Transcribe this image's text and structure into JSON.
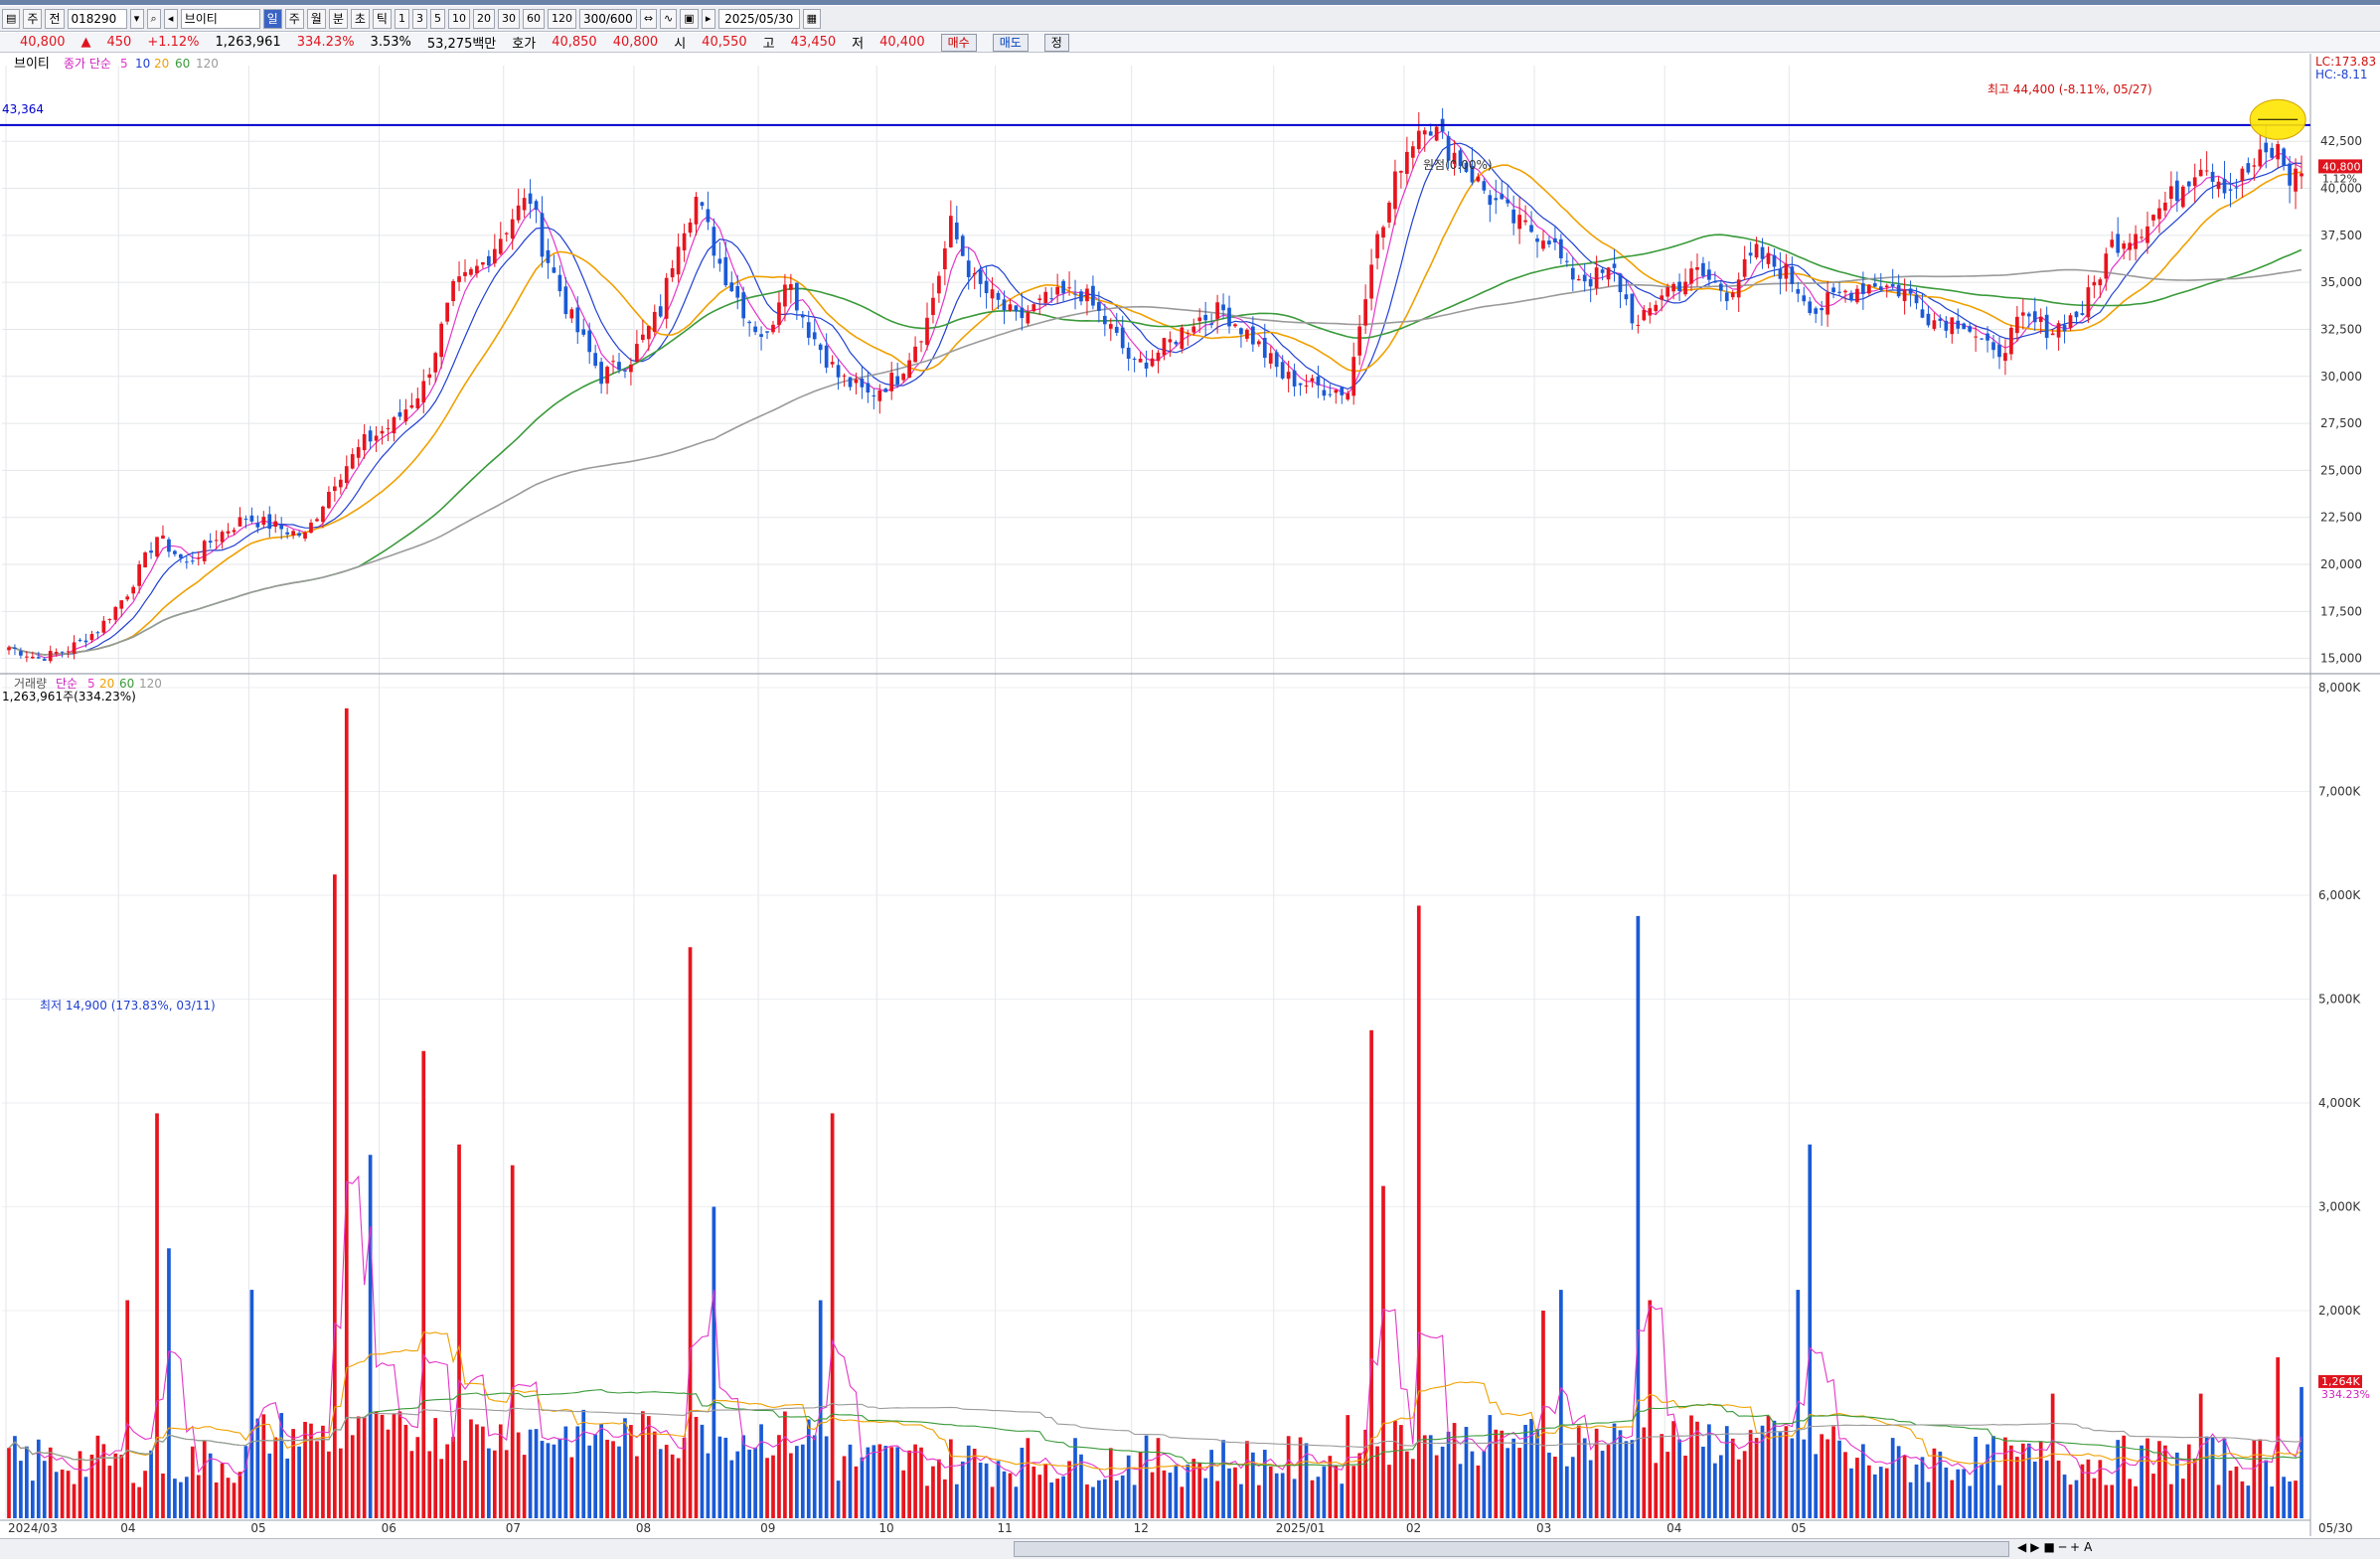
{
  "toolbar": {
    "period_day": "일",
    "period_week": "주",
    "period_month": "월",
    "period_min": "분",
    "period_sec": "초",
    "period_tick": "틱",
    "mode_label": "주",
    "sub_label": "전",
    "code": "018290",
    "name": "브이티",
    "nums": [
      "1",
      "3",
      "5",
      "10",
      "20",
      "30",
      "60",
      "120"
    ],
    "count": "300/600",
    "date": "2025/05/30"
  },
  "quote": {
    "price": "40,800",
    "arrow": "▲",
    "change": "450",
    "change_pct": "+1.12%",
    "volume": "1,263,961",
    "vol_ratio": "334.23%",
    "turnover": "3.53%",
    "amount": "53,275백만",
    "ask_label": "호가",
    "ask1": "40,850",
    "ask2": "40,800",
    "open_label": "시",
    "open": "40,550",
    "high_label": "고",
    "high": "43,450",
    "low_label": "저",
    "low": "40,400",
    "buy": "매수",
    "sell": "매도",
    "other": "정"
  },
  "chart_data": [
    {
      "type": "candlestick",
      "title": "브이티",
      "legend": {
        "label": "종가 단순",
        "periods": [
          "5",
          "10",
          "20",
          "60",
          "120"
        ]
      },
      "colors": {
        "up": "#e8141e",
        "down": "#1a5ad6",
        "ma5": "#e436c8",
        "ma10": "#2040d0",
        "ma20": "#f0a000",
        "ma60": "#3a9a3a",
        "ma120": "#9a9a9a",
        "hline": "#0000cc"
      },
      "ylim": [
        14400,
        46000
      ],
      "y_ticks": [
        "42,500",
        "40,000",
        "37,500",
        "35,000",
        "32,500",
        "30,000",
        "27,500",
        "25,000",
        "22,500",
        "20,000",
        "17,500",
        "15,000"
      ],
      "y_tick_values": [
        42500,
        40000,
        37500,
        35000,
        32500,
        30000,
        27500,
        25000,
        22500,
        20000,
        17500,
        15000
      ],
      "x_labels": [
        "2024/03",
        "04",
        "05",
        "06",
        "07",
        "08",
        "09",
        "10",
        "11",
        "12",
        "2025/01",
        "02",
        "03",
        "04",
        "05",
        "05/30"
      ],
      "horizontal_line": {
        "value": 43364,
        "label": "43,364"
      },
      "annotations": {
        "high": "최고 44,400 (-8.11%, 05/27)",
        "low": "최저 14,900 (173.83%, 03/11)",
        "mid": "원점(0.00%)",
        "lc": "LC:173.83",
        "hc": "HC:-8.11",
        "current_price": "40,800",
        "current_pct": "1.12%"
      },
      "keypoints": [
        [
          0,
          15600
        ],
        [
          5,
          15000
        ],
        [
          10,
          15500
        ],
        [
          15,
          16500
        ],
        [
          20,
          18500
        ],
        [
          25,
          21500
        ],
        [
          30,
          20000
        ],
        [
          35,
          21500
        ],
        [
          40,
          22500
        ],
        [
          45,
          22000
        ],
        [
          50,
          21500
        ],
        [
          55,
          24500
        ],
        [
          60,
          26500
        ],
        [
          65,
          27500
        ],
        [
          70,
          29500
        ],
        [
          72,
          31500
        ],
        [
          75,
          34500
        ],
        [
          80,
          36000
        ],
        [
          85,
          38500
        ],
        [
          88,
          39500
        ],
        [
          90,
          37000
        ],
        [
          95,
          33000
        ],
        [
          100,
          30000
        ],
        [
          105,
          31000
        ],
        [
          110,
          33500
        ],
        [
          113,
          37500
        ],
        [
          116,
          39500
        ],
        [
          120,
          36000
        ],
        [
          125,
          33000
        ],
        [
          128,
          32000
        ],
        [
          131,
          35500
        ],
        [
          135,
          32500
        ],
        [
          140,
          30000
        ],
        [
          145,
          29000
        ],
        [
          150,
          30000
        ],
        [
          155,
          33000
        ],
        [
          159,
          38000
        ],
        [
          163,
          35000
        ],
        [
          170,
          33000
        ],
        [
          175,
          34000
        ],
        [
          181,
          34500
        ],
        [
          186,
          32500
        ],
        [
          190,
          30500
        ],
        [
          195,
          31500
        ],
        [
          200,
          33000
        ],
        [
          205,
          33500
        ],
        [
          210,
          32000
        ],
        [
          215,
          30000
        ],
        [
          220,
          29500
        ],
        [
          226,
          29200
        ],
        [
          230,
          36500
        ],
        [
          232,
          38000
        ],
        [
          235,
          41500
        ],
        [
          239,
          43800
        ],
        [
          242,
          42500
        ],
        [
          245,
          41500
        ],
        [
          250,
          39500
        ],
        [
          255,
          38000
        ],
        [
          260,
          37500
        ],
        [
          263,
          35500
        ],
        [
          267,
          35200
        ],
        [
          271,
          35500
        ],
        [
          275,
          32500
        ],
        [
          279,
          34500
        ],
        [
          285,
          35500
        ],
        [
          290,
          34500
        ],
        [
          295,
          36500
        ],
        [
          300,
          35500
        ],
        [
          305,
          33500
        ],
        [
          310,
          34500
        ],
        [
          315,
          35000
        ],
        [
          320,
          34500
        ],
        [
          325,
          33000
        ],
        [
          330,
          33000
        ],
        [
          335,
          31000
        ],
        [
          340,
          33000
        ],
        [
          345,
          32500
        ],
        [
          350,
          33500
        ],
        [
          355,
          37000
        ],
        [
          360,
          38000
        ],
        [
          365,
          39500
        ],
        [
          370,
          41500
        ],
        [
          375,
          40000
        ],
        [
          380,
          41500
        ],
        [
          383,
          42000
        ],
        [
          385,
          40500
        ],
        [
          387,
          40800
        ]
      ]
    },
    {
      "type": "bar",
      "title": "거래량",
      "legend": {
        "label": "단순",
        "periods": [
          "5",
          "20",
          "60",
          "120"
        ]
      },
      "current_label": "1,263,961주(334.23%)",
      "ylim": [
        0,
        8000
      ],
      "y_ticks": [
        "8,000K",
        "7,000K",
        "6,000K",
        "5,000K",
        "4,000K",
        "3,000K",
        "2,000K"
      ],
      "y_tick_values": [
        8000,
        7000,
        6000,
        5000,
        4000,
        3000,
        2000
      ],
      "current_value": "1,264K",
      "current_pct": "334.23%",
      "spikes_k": [
        [
          20,
          2100
        ],
        [
          25,
          3900
        ],
        [
          27,
          2600
        ],
        [
          41,
          2200
        ],
        [
          55,
          6200
        ],
        [
          57,
          7800
        ],
        [
          61,
          3500
        ],
        [
          70,
          4500
        ],
        [
          76,
          3600
        ],
        [
          85,
          3400
        ],
        [
          115,
          5500
        ],
        [
          119,
          3000
        ],
        [
          137,
          2100
        ],
        [
          139,
          3900
        ],
        [
          230,
          4700
        ],
        [
          232,
          3200
        ],
        [
          238,
          5900
        ],
        [
          259,
          2000
        ],
        [
          262,
          2200
        ],
        [
          275,
          5800
        ],
        [
          277,
          2100
        ],
        [
          302,
          2200
        ],
        [
          304,
          3600
        ],
        [
          345,
          1200
        ],
        [
          370,
          1200
        ],
        [
          383,
          1550
        ],
        [
          387,
          1264
        ]
      ]
    }
  ],
  "bottom": {
    "nav": [
      "◀",
      "▶",
      "■",
      "─",
      "+",
      "A"
    ]
  }
}
